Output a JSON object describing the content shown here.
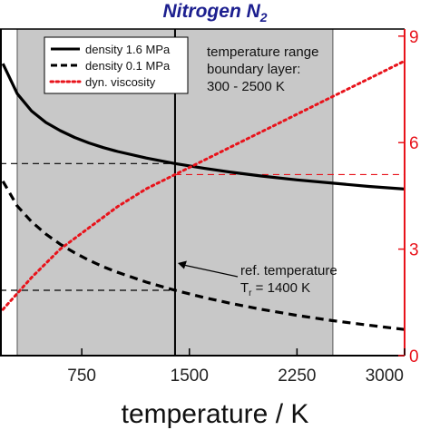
{
  "chart_data": {
    "type": "line",
    "title": "Nitrogen N",
    "title_subscript": "2",
    "xlabel": "temperature / K",
    "xlim": [
      180,
      3000
    ],
    "x_ticks": [
      750,
      1500,
      2250,
      3000
    ],
    "x_tick_labels": [
      "750",
      "1500",
      "2250",
      "3000"
    ],
    "left_ylim": [
      0,
      1
    ],
    "right_ylim": [
      0,
      9.2
    ],
    "right_ticks": [
      0,
      3,
      6,
      9
    ],
    "right_tick_labels": [
      "0",
      "3",
      "6",
      "9"
    ],
    "right_axis_color": "#e8131b",
    "shaded_region": {
      "x_start": 300,
      "x_end": 2500,
      "color": "#c8c8c8"
    },
    "reference_line_x": 1400,
    "legend": {
      "placement": "top-left",
      "entries": [
        {
          "label": "density 1.6 MPa",
          "style": "solid",
          "color": "#000000"
        },
        {
          "label": "density 0.1 MPa",
          "style": "dashed",
          "color": "#000000"
        },
        {
          "label": "dyn. viscosity",
          "style": "dotted",
          "color": "#e8131b"
        }
      ]
    },
    "annotations": {
      "range_text": [
        "temperature range",
        "boundary layer:",
        "300 - 2500 K"
      ],
      "ref_text": "ref. temperature",
      "ref_value_prefix": "T",
      "ref_value_subscript": "r",
      "ref_value_suffix": " = 1400 K"
    },
    "series": [
      {
        "name": "density 1.6 MPa",
        "axis": "left",
        "style": "solid",
        "color": "#000000",
        "x": [
          200,
          300,
          400,
          500,
          600,
          700,
          800,
          900,
          1000,
          1200,
          1400,
          1600,
          1800,
          2000,
          2250,
          2500,
          2750,
          3000
        ],
        "y": [
          0.894,
          0.802,
          0.749,
          0.714,
          0.689,
          0.668,
          0.651,
          0.637,
          0.625,
          0.605,
          0.588,
          0.574,
          0.561,
          0.55,
          0.538,
          0.528,
          0.518,
          0.51
        ]
      },
      {
        "name": "density 0.1 MPa",
        "axis": "left",
        "style": "dashed",
        "color": "#000000",
        "x": [
          200,
          300,
          400,
          500,
          600,
          700,
          800,
          900,
          1000,
          1200,
          1400,
          1600,
          1800,
          2000,
          2250,
          2500,
          2750,
          3000
        ],
        "y": [
          0.534,
          0.458,
          0.41,
          0.372,
          0.341,
          0.315,
          0.292,
          0.272,
          0.255,
          0.225,
          0.2,
          0.178,
          0.159,
          0.142,
          0.123,
          0.107,
          0.093,
          0.08
        ]
      },
      {
        "name": "dyn. viscosity",
        "axis": "right",
        "style": "dotted",
        "color": "#e8131b",
        "x": [
          200,
          400,
          600,
          800,
          1000,
          1200,
          1400,
          1600,
          1800,
          2000,
          2250,
          2500,
          2750,
          3000
        ],
        "y": [
          1.3,
          2.2,
          3.0,
          3.6,
          4.2,
          4.7,
          5.1,
          5.5,
          5.9,
          6.3,
          6.8,
          7.3,
          7.8,
          8.3
        ]
      }
    ],
    "horizontal_guides": [
      {
        "axis": "left",
        "y": 0.588,
        "style": "dashed",
        "color": "#000000",
        "from": "left-edge",
        "to": 1400
      },
      {
        "axis": "left",
        "y": 0.2,
        "style": "dashed",
        "color": "#000000",
        "from": "left-edge",
        "to": 1400
      },
      {
        "axis": "right",
        "y": 5.1,
        "style": "dashed",
        "color": "#e8131b",
        "from": 1400,
        "to": "right-edge"
      }
    ]
  }
}
